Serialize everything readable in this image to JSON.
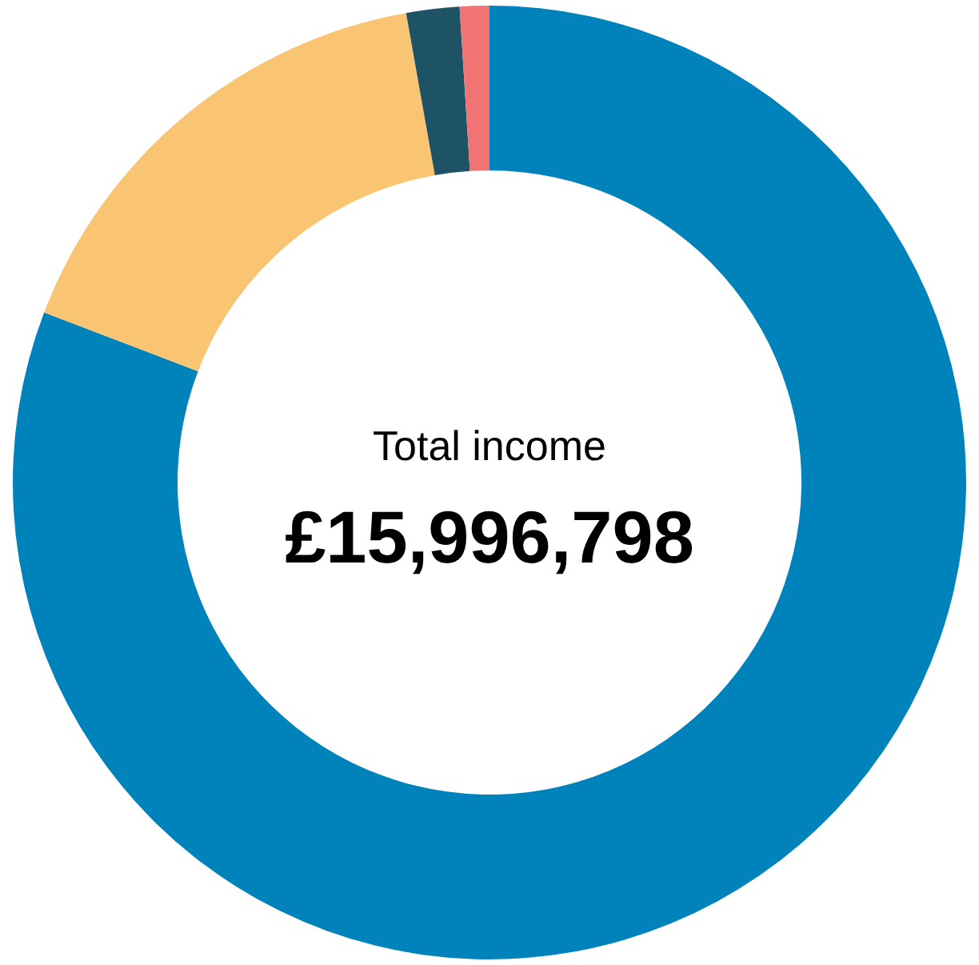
{
  "chart_data": {
    "type": "donut",
    "categories": [
      null,
      null,
      null,
      null
    ],
    "values": [
      80.8,
      16.4,
      1.8,
      1.0
    ],
    "colors": [
      "#0082ba",
      "#fac572",
      "#1e5366",
      "#f07474"
    ],
    "annotations": [
      "Total income",
      "£15,996,798"
    ]
  }
}
